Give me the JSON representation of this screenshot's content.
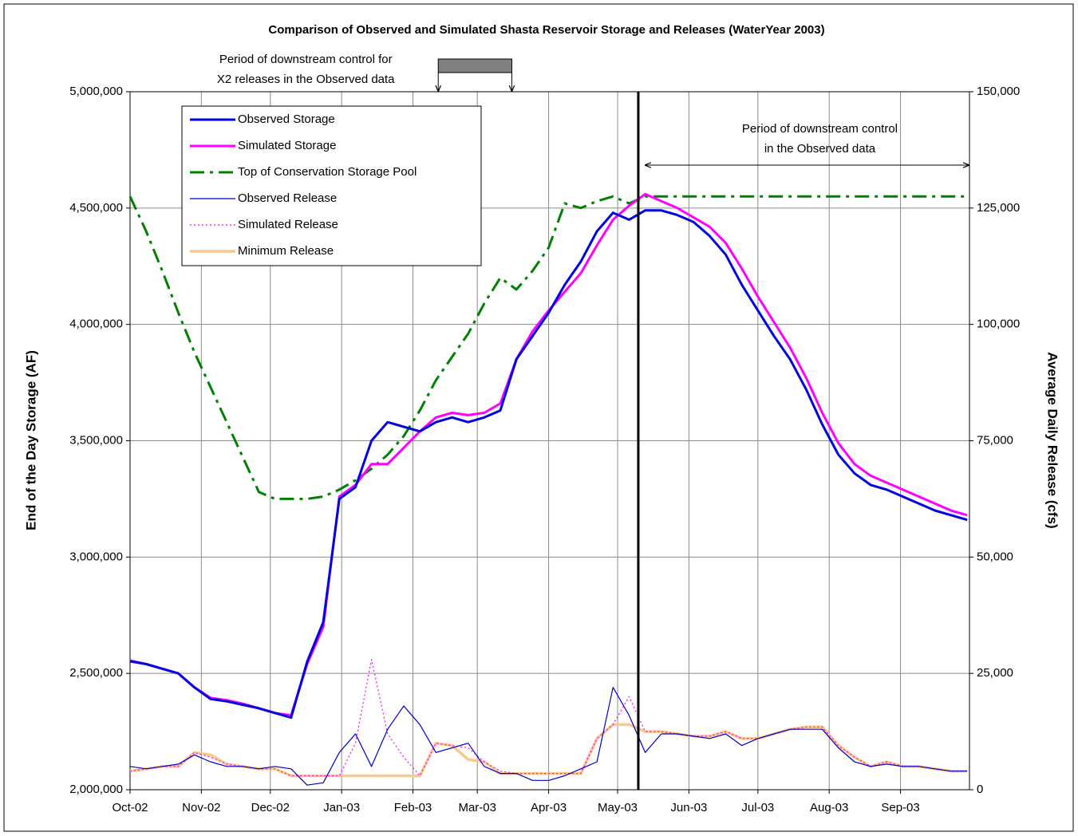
{
  "chart_data": {
    "type": "line",
    "title": "Comparison of Observed and Simulated Shasta Reservoir Storage and Releases (WaterYear 2003)",
    "y_label": "End of the Day Storage (AF)",
    "y2_label": "Average Daily Release (cfs)",
    "x": [
      0,
      7,
      14,
      21,
      28,
      35,
      42,
      49,
      56,
      63,
      70,
      77,
      84,
      91,
      98,
      105,
      112,
      119,
      126,
      133,
      140,
      147,
      154,
      161,
      168,
      175,
      182,
      189,
      196,
      203,
      210,
      217,
      224,
      231,
      238,
      245,
      252,
      259,
      266,
      273,
      280,
      287,
      294,
      301,
      308,
      315,
      322,
      329,
      336,
      343,
      350,
      357,
      364
    ],
    "xlim": [
      0,
      365
    ],
    "xticks": [
      {
        "value": 0,
        "label": "Oct-02"
      },
      {
        "value": 31,
        "label": "Nov-02"
      },
      {
        "value": 61,
        "label": "Dec-02"
      },
      {
        "value": 92,
        "label": "Jan-03"
      },
      {
        "value": 123,
        "label": "Feb-03"
      },
      {
        "value": 151,
        "label": "Mar-03"
      },
      {
        "value": 182,
        "label": "Apr-03"
      },
      {
        "value": 212,
        "label": "May-03"
      },
      {
        "value": 243,
        "label": "Jun-03"
      },
      {
        "value": 273,
        "label": "Jul-03"
      },
      {
        "value": 304,
        "label": "Aug-03"
      },
      {
        "value": 335,
        "label": "Sep-03"
      }
    ],
    "ylim": [
      2000000,
      5000000
    ],
    "yticks": [
      {
        "value": 2000000,
        "label": "2,000,000"
      },
      {
        "value": 2500000,
        "label": "2,500,000"
      },
      {
        "value": 3000000,
        "label": "3,000,000"
      },
      {
        "value": 3500000,
        "label": "3,500,000"
      },
      {
        "value": 4000000,
        "label": "4,000,000"
      },
      {
        "value": 4500000,
        "label": "4,500,000"
      },
      {
        "value": 5000000,
        "label": "5,000,000"
      }
    ],
    "y2lim": [
      0,
      150000
    ],
    "y2ticks": [
      0,
      {
        "value": 25000,
        "label": "25,000"
      },
      {
        "value": 50000,
        "label": "50,000"
      },
      {
        "value": 75000,
        "label": "75,000"
      },
      {
        "value": 100000,
        "label": "100,000"
      },
      {
        "value": 125000,
        "label": "125,000"
      },
      {
        "value": 150000,
        "label": "150,000"
      }
    ],
    "grid": true,
    "legend": "upper left",
    "series": [
      {
        "name": "Observed Storage",
        "color": "#0000e0",
        "width": 3,
        "dash": "solid",
        "values": [
          2552000,
          2540000,
          2520000,
          2500000,
          2440000,
          2390000,
          2380000,
          2365000,
          2350000,
          2330000,
          2310000,
          2550000,
          2720000,
          3250000,
          3300000,
          3500000,
          3580000,
          3560000,
          3540000,
          3580000,
          3600000,
          3580000,
          3600000,
          3630000,
          3850000,
          3950000,
          4050000,
          4170000,
          4270000,
          4400000,
          4480000,
          4450000,
          4490000,
          4490000,
          4470000,
          4440000,
          4380000,
          4300000,
          4170000,
          4060000,
          3950000,
          3850000,
          3720000,
          3570000,
          3440000,
          3360000,
          3310000,
          3290000,
          3260000,
          3230000,
          3200000,
          3180000,
          3160000
        ]
      },
      {
        "name": "Simulated Storage",
        "color": "#ff00ff",
        "width": 3,
        "dash": "solid",
        "values": [
          2555000,
          2540000,
          2520000,
          2500000,
          2440000,
          2395000,
          2385000,
          2370000,
          2350000,
          2330000,
          2320000,
          2540000,
          2700000,
          3260000,
          3310000,
          3400000,
          3400000,
          3470000,
          3540000,
          3600000,
          3620000,
          3610000,
          3620000,
          3660000,
          3850000,
          3970000,
          4060000,
          4140000,
          4220000,
          4340000,
          4450000,
          4510000,
          4560000,
          4530000,
          4500000,
          4460000,
          4420000,
          4350000,
          4240000,
          4120000,
          4010000,
          3900000,
          3770000,
          3620000,
          3490000,
          3400000,
          3350000,
          3320000,
          3290000,
          3260000,
          3230000,
          3200000,
          3180000
        ]
      },
      {
        "name": "Top of Conservation Storage Pool",
        "color": "#008000",
        "width": 3,
        "dash": "dashdot",
        "values": [
          4550000,
          4400000,
          4230000,
          4050000,
          3880000,
          3730000,
          3580000,
          3430000,
          3280000,
          3250000,
          3250000,
          3250000,
          3260000,
          3290000,
          3330000,
          3380000,
          3440000,
          3520000,
          3630000,
          3760000,
          3860000,
          3960000,
          4090000,
          4200000,
          4150000,
          4230000,
          4330000,
          4520000,
          4500000,
          4530000,
          4550000,
          4520000,
          4550000,
          4550000,
          4550000,
          4550000,
          4550000,
          4550000,
          4550000,
          4550000,
          4550000,
          4550000,
          4550000,
          4550000,
          4550000,
          4550000,
          4550000,
          4550000,
          4550000,
          4550000,
          4550000,
          4550000,
          4550000
        ]
      },
      {
        "name": "Observed Release",
        "color": "#0000cc",
        "width": 1.2,
        "dash": "solid",
        "axis": "y2",
        "values": [
          5000,
          4500,
          5000,
          5500,
          7500,
          6000,
          5000,
          5000,
          4500,
          5000,
          4500,
          1000,
          1500,
          8000,
          12000,
          5000,
          13000,
          18000,
          14000,
          8000,
          9000,
          10000,
          5000,
          3500,
          3500,
          2000,
          2000,
          3000,
          4500,
          6000,
          22000,
          16000,
          8000,
          12000,
          12000,
          11500,
          11000,
          12000,
          9500,
          11000,
          12000,
          13000,
          13000,
          13000,
          9000,
          6000,
          5000,
          5500,
          5000,
          5000,
          4500,
          4000,
          4000
        ]
      },
      {
        "name": "Simulated Release",
        "color": "#ff00ff",
        "width": 1.2,
        "dash": "dotted",
        "axis": "y2",
        "values": [
          4000,
          4500,
          5000,
          5000,
          8000,
          7000,
          5500,
          5000,
          4500,
          4500,
          3000,
          3000,
          3000,
          3000,
          10000,
          28000,
          12000,
          7000,
          3000,
          10000,
          9500,
          9000,
          6000,
          4000,
          3500,
          3500,
          3500,
          3500,
          3500,
          11000,
          14000,
          20000,
          12500,
          12500,
          12000,
          11500,
          11500,
          12500,
          11000,
          11000,
          12000,
          13000,
          13500,
          13500,
          9500,
          7000,
          5000,
          6000,
          5000,
          5000,
          4500,
          4000,
          4000
        ]
      },
      {
        "name": "Minimum Release",
        "color": "#f9c98a",
        "width": 3.5,
        "dash": "solid",
        "axis": "y2",
        "values": [
          4000,
          4500,
          5000,
          5000,
          8000,
          7500,
          5500,
          5000,
          4500,
          4500,
          3000,
          3000,
          3000,
          3000,
          3000,
          3000,
          3000,
          3000,
          3000,
          10000,
          9500,
          6500,
          6000,
          3500,
          3500,
          3500,
          3500,
          3500,
          3500,
          11000,
          14000,
          14000,
          12500,
          12500,
          12000,
          11500,
          11500,
          12500,
          11000,
          11000,
          12000,
          13000,
          13500,
          13500,
          9500,
          7000,
          5000,
          6000,
          5000,
          5000,
          4500,
          4000,
          4000
        ]
      }
    ],
    "annotations": {
      "x2_period": {
        "lines": [
          "Period of downstream control for",
          "X2 releases in the Observed data"
        ],
        "start": 134,
        "end": 166
      },
      "observed_period": {
        "lines": [
          "Period of downstream control",
          "in the Observed data"
        ],
        "start": 221,
        "end": 365
      }
    }
  }
}
